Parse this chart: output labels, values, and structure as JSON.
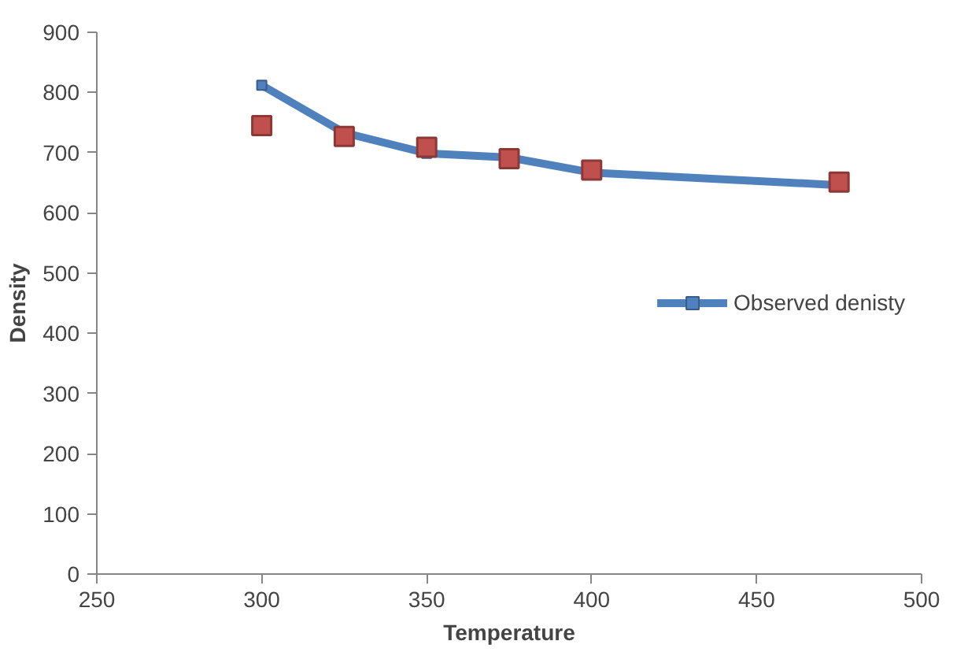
{
  "chart_data": {
    "type": "line",
    "xlabel": "Temperature",
    "ylabel": "Density",
    "x": [
      300,
      325,
      350,
      375,
      400,
      475
    ],
    "series": [
      {
        "name": "Observed denisty",
        "color": "#4f81bd",
        "marker": "square",
        "values": [
          812,
          733,
          699,
          692,
          667,
          646
        ]
      },
      {
        "color": "#c0504d",
        "type": "scatter",
        "marker": "square",
        "values": [
          745,
          727,
          709,
          690,
          671,
          651
        ]
      }
    ],
    "xlim": [
      250,
      500
    ],
    "xticks": [
      250,
      300,
      350,
      400,
      450,
      500
    ],
    "ylim": [
      0,
      900
    ],
    "yticks": [
      0,
      100,
      200,
      300,
      400,
      500,
      600,
      700,
      800,
      900
    ],
    "grid": false,
    "legend": "right"
  }
}
